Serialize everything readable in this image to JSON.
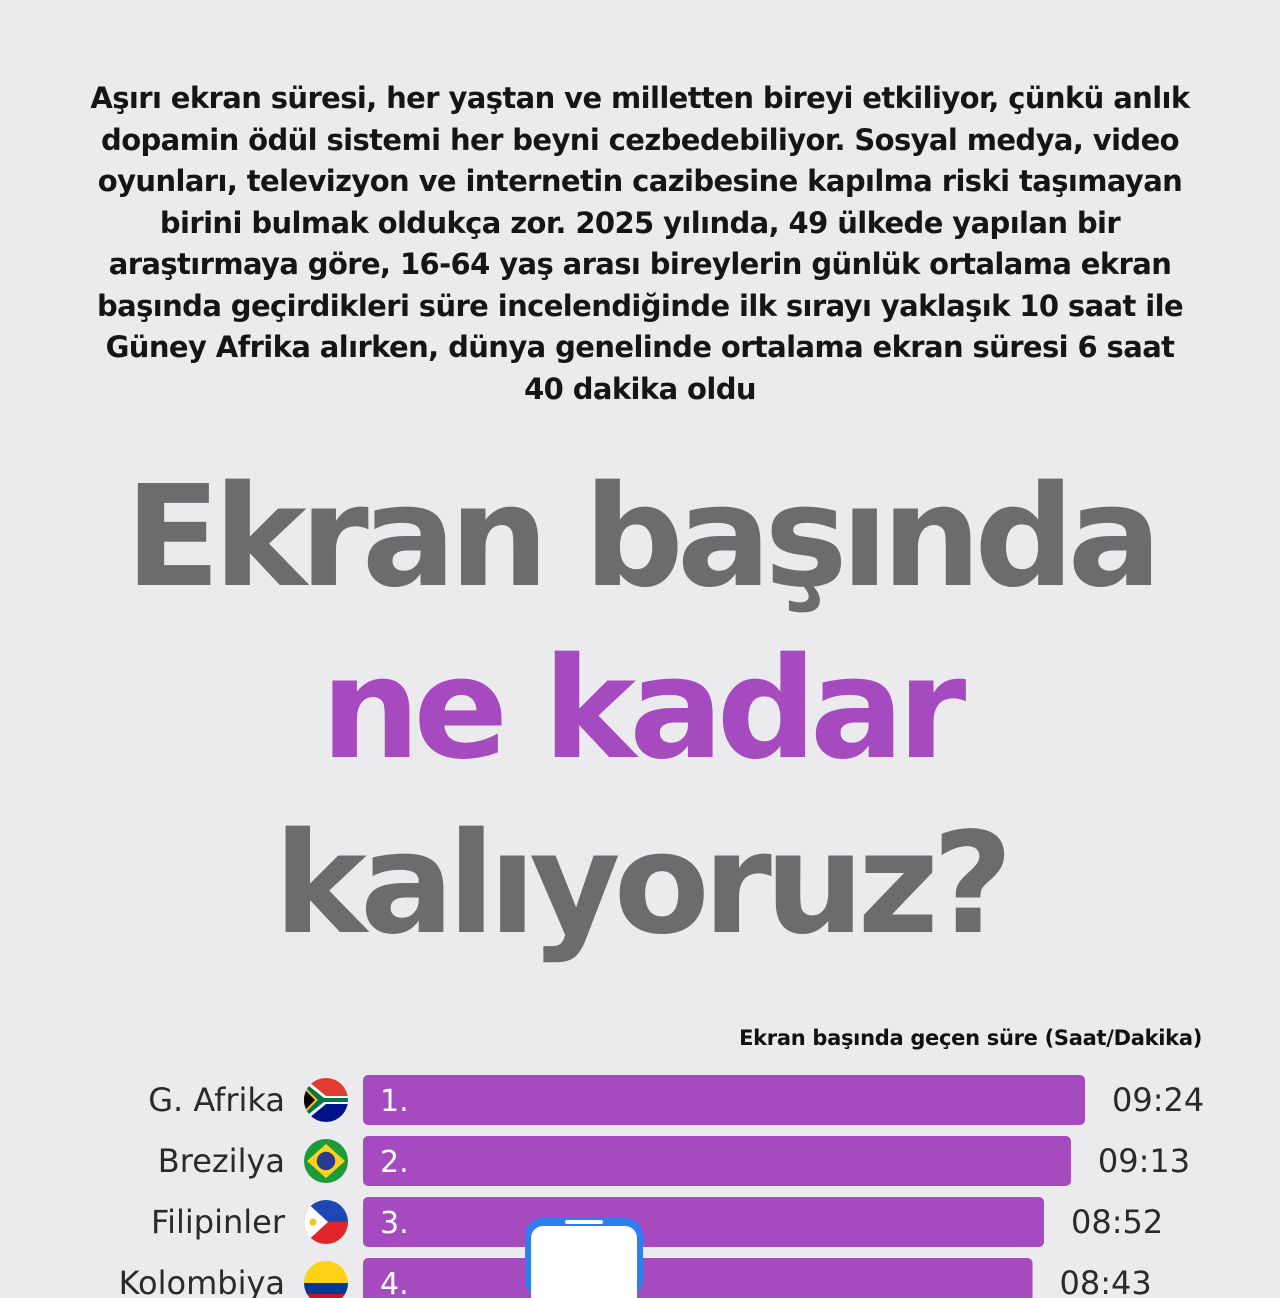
{
  "intro_text": "Aşırı ekran süresi, her yaştan ve milletten bireyi etkiliyor, çünkü anlık dopamin ödül sistemi her beyni cezbedebiliyor. Sosyal medya, video oyunları, televizyon ve internetin cazibesine kapılma riski taşımayan birini bulmak oldukça zor. 2025 yılında, 49 ülkede yapılan bir araştırmaya göre, 16-64 yaş arası bireylerin günlük ortalama ekran başında geçirdikleri süre incelendiğinde ilk sırayı yaklaşık 10 saat ile Güney Afrika alırken, dünya genelinde ortalama ekran süresi 6 saat 40 dakika oldu",
  "headline": {
    "line1": "Ekran başında",
    "line2": "ne kadar",
    "line3": "kalıyoruz?"
  },
  "colors": {
    "background": "#ebebed",
    "headline_gray": "#6c6c6c",
    "accent_purple": "#a64ac0",
    "phone_blue": "#2d7ff0"
  },
  "chart_data": {
    "type": "bar",
    "orientation": "horizontal",
    "subtitle": "Ekran başında geçen süre (Saat/Dakika)",
    "categories": [
      "G. Afrika",
      "Brezilya",
      "Filipinler",
      "Kolombiya"
    ],
    "ranks": [
      "1.",
      "2.",
      "3.",
      "4."
    ],
    "value_labels": [
      "09:24",
      "09:13",
      "08:52",
      "08:43"
    ],
    "values_minutes": [
      564,
      553,
      532,
      523
    ],
    "flags": [
      "south-africa-flag-icon",
      "brazil-flag-icon",
      "philippines-flag-icon",
      "colombia-flag-icon"
    ],
    "bar_color": "#a64ac0"
  }
}
